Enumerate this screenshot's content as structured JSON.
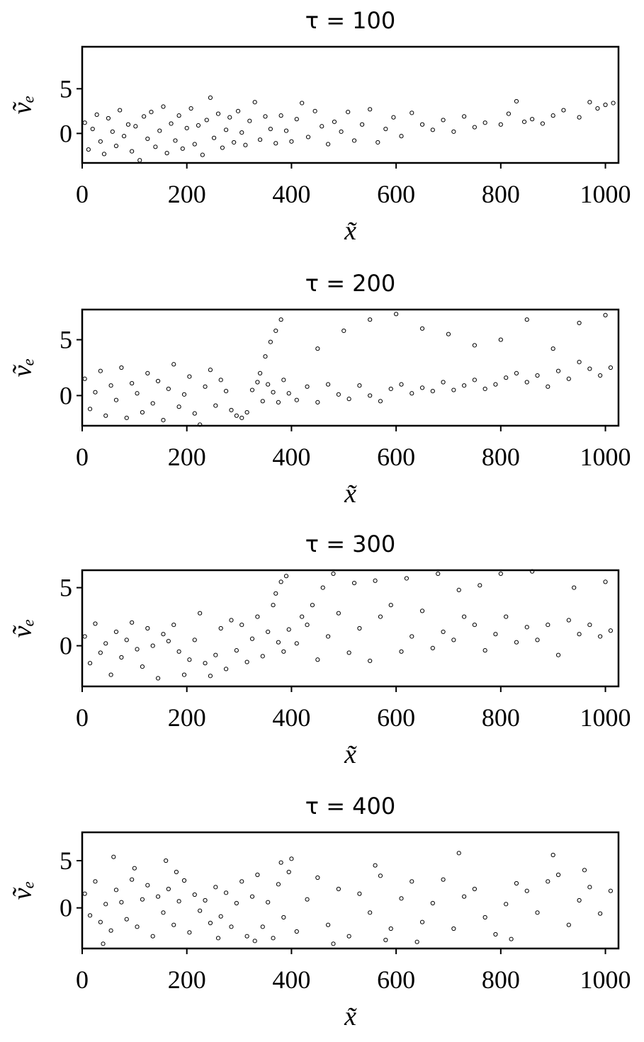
{
  "chart_data": [
    {
      "type": "scatter",
      "title": "τ = 100",
      "xlabel": "x̃",
      "ylabel": "ṽₑ",
      "color": "#000000",
      "xlim": [
        0,
        1025
      ],
      "ylim": [
        -3.3,
        9.7
      ],
      "xticks": [
        0,
        200,
        400,
        600,
        800,
        1000
      ],
      "yticks": [
        0,
        5
      ],
      "x": [
        5,
        12,
        20,
        28,
        35,
        42,
        50,
        58,
        65,
        72,
        80,
        88,
        95,
        102,
        110,
        118,
        125,
        132,
        140,
        148,
        155,
        162,
        170,
        178,
        185,
        192,
        200,
        208,
        215,
        222,
        230,
        238,
        245,
        252,
        260,
        268,
        275,
        282,
        290,
        298,
        305,
        312,
        320,
        330,
        340,
        350,
        360,
        370,
        380,
        390,
        400,
        410,
        420,
        432,
        445,
        458,
        470,
        482,
        495,
        508,
        520,
        535,
        550,
        565,
        580,
        595,
        610,
        630,
        650,
        670,
        690,
        710,
        730,
        750,
        770,
        800,
        815,
        830,
        845,
        860,
        880,
        900,
        920,
        950,
        970,
        985,
        1000,
        1015
      ],
      "y": [
        1.2,
        -1.8,
        0.5,
        2.1,
        -0.9,
        -2.3,
        1.7,
        0.2,
        -1.4,
        2.6,
        -0.3,
        1.0,
        -2.0,
        0.8,
        -3.0,
        1.9,
        -0.6,
        2.4,
        -1.5,
        0.3,
        3.0,
        -2.2,
        1.1,
        -0.8,
        2.0,
        -1.7,
        0.6,
        2.8,
        -1.2,
        0.9,
        -2.4,
        1.5,
        4.0,
        -0.5,
        2.2,
        -1.6,
        0.4,
        1.8,
        -1.0,
        2.5,
        0.1,
        -1.3,
        1.4,
        3.5,
        -0.7,
        1.9,
        0.5,
        -1.1,
        2.0,
        0.3,
        -0.9,
        1.6,
        3.4,
        -0.4,
        2.5,
        0.8,
        -1.2,
        1.3,
        0.2,
        2.4,
        -0.8,
        1.0,
        2.7,
        -1.0,
        0.5,
        1.8,
        -0.3,
        2.3,
        1.0,
        0.4,
        1.5,
        0.2,
        1.9,
        0.7,
        1.2,
        1.0,
        2.2,
        3.6,
        1.3,
        1.6,
        1.1,
        2.0,
        2.6,
        1.8,
        3.5,
        2.8,
        3.2,
        3.4
      ]
    },
    {
      "type": "scatter",
      "title": "τ = 200",
      "xlabel": "x̃",
      "ylabel": "ṽₑ",
      "color": "#000000",
      "xlim": [
        0,
        1025
      ],
      "ylim": [
        -2.7,
        7.7
      ],
      "xticks": [
        0,
        200,
        400,
        600,
        800,
        1000
      ],
      "yticks": [
        0,
        5
      ],
      "x": [
        5,
        15,
        25,
        35,
        45,
        55,
        65,
        75,
        85,
        95,
        105,
        115,
        125,
        135,
        145,
        155,
        165,
        175,
        185,
        195,
        205,
        215,
        225,
        235,
        245,
        255,
        265,
        275,
        285,
        295,
        305,
        315,
        325,
        335,
        345,
        355,
        365,
        375,
        385,
        395,
        410,
        430,
        450,
        470,
        490,
        510,
        530,
        550,
        570,
        590,
        610,
        630,
        650,
        670,
        690,
        710,
        730,
        750,
        770,
        790,
        810,
        830,
        850,
        870,
        890,
        910,
        930,
        950,
        970,
        990,
        1010,
        340,
        350,
        360,
        370,
        380,
        450,
        500,
        550,
        600,
        650,
        700,
        750,
        800,
        850,
        900,
        950,
        1000
      ],
      "y": [
        1.5,
        -1.2,
        0.3,
        2.2,
        -1.8,
        0.9,
        -0.4,
        2.5,
        -2.0,
        1.1,
        0.2,
        -1.5,
        2.0,
        -0.7,
        1.3,
        -2.2,
        0.6,
        2.8,
        -1.0,
        0.1,
        1.7,
        -1.6,
        -2.6,
        0.8,
        2.3,
        -0.9,
        1.4,
        0.4,
        -1.3,
        -1.8,
        -2.0,
        -1.5,
        0.5,
        1.2,
        -0.5,
        1.0,
        0.3,
        -0.6,
        1.4,
        0.2,
        -0.4,
        0.8,
        -0.6,
        1.0,
        0.1,
        -0.3,
        0.9,
        0.0,
        -0.5,
        0.6,
        1.0,
        0.2,
        0.7,
        0.4,
        1.2,
        0.5,
        0.9,
        1.4,
        0.6,
        1.0,
        1.6,
        2.0,
        1.2,
        1.8,
        0.8,
        2.2,
        1.5,
        3.0,
        2.4,
        1.8,
        2.5,
        2.0,
        3.5,
        4.8,
        5.8,
        6.8,
        4.2,
        5.8,
        6.8,
        7.3,
        6.0,
        5.5,
        4.5,
        5.0,
        6.8,
        4.2,
        6.5,
        7.2
      ]
    },
    {
      "type": "scatter",
      "title": "τ = 300",
      "xlabel": "x̃",
      "ylabel": "ṽₑ",
      "color": "#000000",
      "xlim": [
        0,
        1025
      ],
      "ylim": [
        -3.5,
        6.5
      ],
      "xticks": [
        0,
        200,
        400,
        600,
        800,
        1000
      ],
      "yticks": [
        0,
        5
      ],
      "x": [
        5,
        15,
        25,
        35,
        45,
        55,
        65,
        75,
        85,
        95,
        105,
        115,
        125,
        135,
        145,
        155,
        165,
        175,
        185,
        195,
        205,
        215,
        225,
        235,
        245,
        255,
        265,
        275,
        285,
        295,
        305,
        315,
        325,
        335,
        345,
        355,
        365,
        375,
        385,
        395,
        410,
        430,
        450,
        470,
        490,
        510,
        530,
        550,
        570,
        590,
        610,
        630,
        650,
        670,
        690,
        710,
        730,
        750,
        770,
        790,
        810,
        830,
        850,
        870,
        890,
        910,
        930,
        950,
        970,
        990,
        1010,
        370,
        380,
        390,
        420,
        440,
        460,
        480,
        520,
        560,
        620,
        680,
        720,
        760,
        800,
        860,
        940,
        1000
      ],
      "y": [
        0.8,
        -1.5,
        1.9,
        -0.6,
        0.2,
        -2.5,
        1.2,
        -1.0,
        0.5,
        2.0,
        -0.3,
        -1.8,
        1.5,
        0.0,
        -2.8,
        1.0,
        0.4,
        1.8,
        -0.5,
        -2.5,
        -1.2,
        0.5,
        2.8,
        -1.5,
        -2.6,
        -0.8,
        1.5,
        -2.0,
        2.2,
        -0.4,
        1.8,
        -1.4,
        0.6,
        2.5,
        -0.9,
        1.2,
        3.5,
        0.3,
        -0.5,
        1.4,
        0.2,
        1.8,
        -1.2,
        0.8,
        2.8,
        -0.6,
        1.5,
        -1.3,
        2.5,
        3.5,
        -0.5,
        0.8,
        3.0,
        -0.2,
        1.2,
        0.5,
        2.5,
        1.8,
        -0.4,
        1.0,
        2.5,
        0.3,
        1.6,
        0.5,
        1.8,
        -0.8,
        2.2,
        1.0,
        1.8,
        0.8,
        1.3,
        4.5,
        5.5,
        6.0,
        2.5,
        3.5,
        5.0,
        6.2,
        5.4,
        5.6,
        5.8,
        6.2,
        4.8,
        5.2,
        6.2,
        6.4,
        5.0,
        5.5
      ]
    },
    {
      "type": "scatter",
      "title": "τ = 400",
      "xlabel": "x̃",
      "ylabel": "ṽₑ",
      "color": "#000000",
      "xlim": [
        0,
        1025
      ],
      "ylim": [
        -4.3,
        8.0
      ],
      "xticks": [
        0,
        200,
        400,
        600,
        800,
        1000
      ],
      "yticks": [
        0,
        5
      ],
      "x": [
        5,
        15,
        25,
        35,
        45,
        55,
        65,
        75,
        85,
        95,
        105,
        115,
        125,
        135,
        145,
        155,
        165,
        175,
        185,
        195,
        205,
        215,
        225,
        235,
        245,
        255,
        265,
        275,
        285,
        295,
        305,
        315,
        325,
        335,
        345,
        355,
        365,
        375,
        385,
        395,
        410,
        430,
        450,
        470,
        490,
        510,
        530,
        550,
        570,
        590,
        610,
        630,
        650,
        670,
        690,
        710,
        730,
        750,
        770,
        790,
        810,
        830,
        850,
        870,
        890,
        910,
        930,
        950,
        970,
        990,
        1010,
        60,
        100,
        180,
        330,
        400,
        480,
        560,
        640,
        720,
        820,
        900,
        960,
        40,
        160,
        260,
        380,
        580
      ],
      "y": [
        1.5,
        -0.8,
        2.8,
        -1.5,
        0.4,
        -2.4,
        1.9,
        0.6,
        -1.2,
        3.0,
        -2.0,
        0.9,
        2.4,
        -3.0,
        1.2,
        -0.5,
        2.0,
        -1.8,
        0.7,
        2.9,
        -2.6,
        1.4,
        -0.3,
        0.8,
        -1.6,
        2.2,
        -0.9,
        1.6,
        -2.0,
        0.5,
        2.8,
        -3.0,
        1.2,
        3.5,
        -2.0,
        0.6,
        -3.2,
        2.5,
        -1.0,
        3.8,
        -2.5,
        0.9,
        3.2,
        -1.8,
        2.0,
        -3.0,
        1.5,
        -0.5,
        3.4,
        -2.2,
        1.0,
        2.8,
        -1.5,
        0.5,
        3.0,
        -2.2,
        1.2,
        2.0,
        -1.0,
        -2.8,
        0.4,
        2.6,
        1.8,
        -0.5,
        2.8,
        3.5,
        -1.8,
        0.8,
        2.2,
        -0.6,
        1.8,
        5.4,
        4.2,
        3.8,
        -3.5,
        5.2,
        -3.8,
        4.5,
        -3.6,
        5.8,
        -3.3,
        5.6,
        4.0,
        -3.8,
        5.0,
        -3.2,
        4.8,
        -3.4
      ]
    }
  ]
}
